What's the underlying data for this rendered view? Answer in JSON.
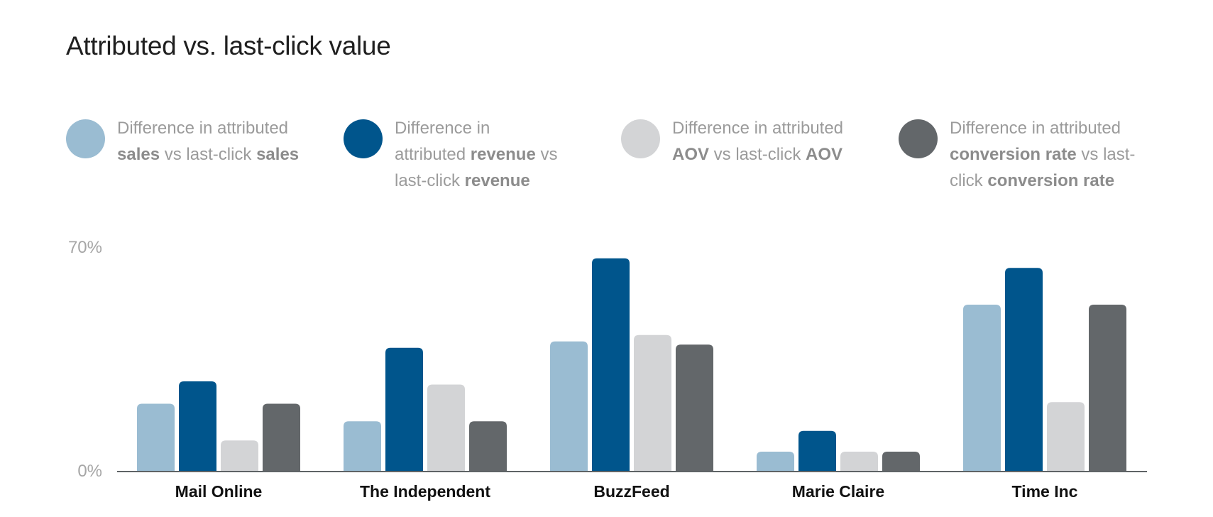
{
  "chart_data": {
    "type": "bar",
    "title": "Attributed vs. last-click value",
    "categories": [
      "Mail Online",
      "The Independent",
      "BuzzFeed",
      "Marie Claire",
      "Time Inc"
    ],
    "ylim": [
      0,
      70
    ],
    "ytick_labels": [
      "0%",
      "70%"
    ],
    "yticks": [
      0,
      70
    ],
    "grid": false,
    "legend_position": "top",
    "series": [
      {
        "name": "Difference in attributed sales vs last-click sales",
        "color": "#9abcd2",
        "values": [
          21,
          15.5,
          40.5,
          6,
          52
        ]
      },
      {
        "name": "Difference in attributed revenue vs last-click revenue",
        "color": "#00558c",
        "values": [
          28,
          38.5,
          66.5,
          12.5,
          63.5
        ]
      },
      {
        "name": "Difference in attributed AOV vs last-click AOV",
        "color": "#d3d4d6",
        "values": [
          9.5,
          27,
          42.5,
          6,
          21.5
        ]
      },
      {
        "name": "Difference in attributed conversion rate vs last-click conversion rate",
        "color": "#63676a",
        "values": [
          21,
          15.5,
          39.5,
          6,
          52
        ]
      }
    ]
  },
  "legend": [
    {
      "icon": "light-blue-circle",
      "color": "#9abcd2",
      "parts": [
        {
          "t": "Difference in attributed ",
          "b": false
        },
        {
          "t": "sales",
          "b": true
        },
        {
          "t": " vs last-click ",
          "b": false
        },
        {
          "t": "sales",
          "b": true
        }
      ]
    },
    {
      "icon": "dark-blue-circle",
      "color": "#00558c",
      "parts": [
        {
          "t": "Difference in attributed ",
          "b": false
        },
        {
          "t": "revenue",
          "b": true
        },
        {
          "t": " vs last-click ",
          "b": false
        },
        {
          "t": "revenue",
          "b": true
        }
      ]
    },
    {
      "icon": "light-gray-circle",
      "color": "#d3d4d6",
      "parts": [
        {
          "t": "Difference in attributed ",
          "b": false
        },
        {
          "t": "AOV",
          "b": true
        },
        {
          "t": " vs last-click ",
          "b": false
        },
        {
          "t": "AOV",
          "b": true
        }
      ]
    },
    {
      "icon": "dark-gray-circle",
      "color": "#63676a",
      "parts": [
        {
          "t": "Difference in attributed ",
          "b": false
        },
        {
          "t": "conversion rate",
          "b": true
        },
        {
          "t": " vs last-click ",
          "b": false
        },
        {
          "t": "conversion rate",
          "b": true
        }
      ]
    }
  ]
}
